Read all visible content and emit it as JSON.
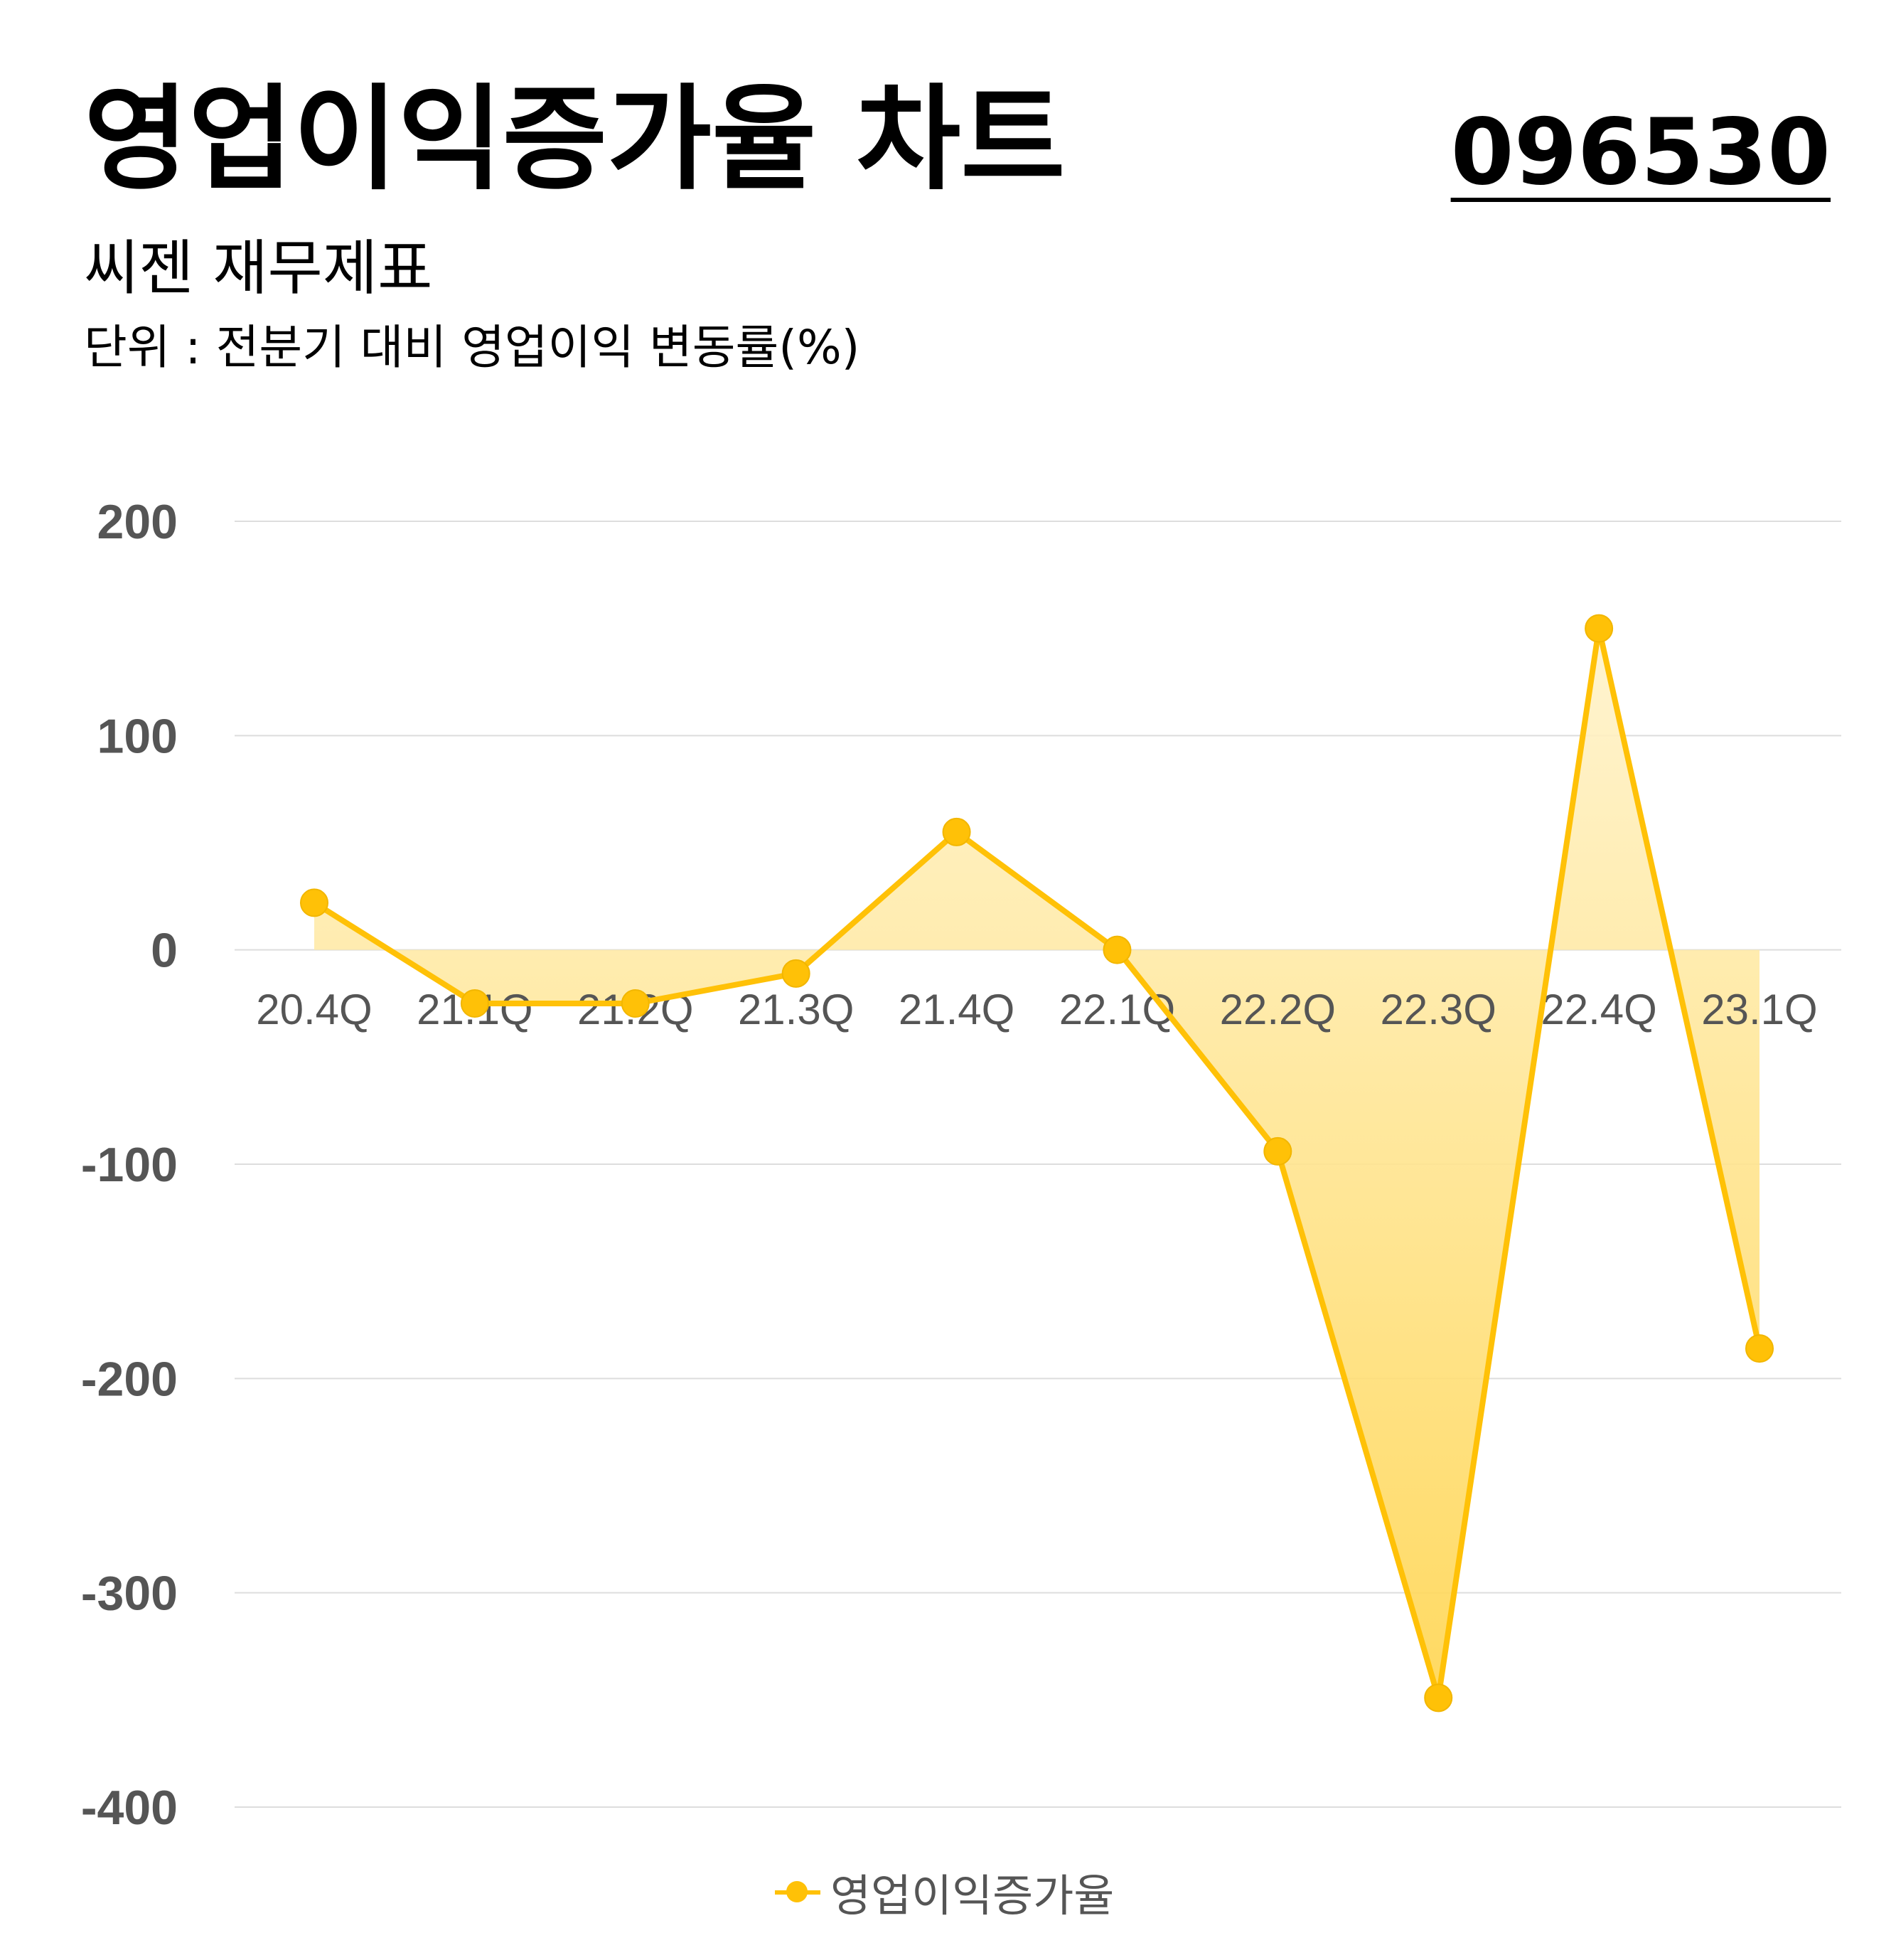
{
  "header": {
    "title": "영업이익증가율 차트",
    "code": "096530",
    "subtitle": "씨젠 재무제표",
    "unit": "단위 : 전분기 대비 영업이익 변동률(%)"
  },
  "colors": {
    "line": "#FFC107",
    "fill": "#FFE082",
    "grid": "#dddddd",
    "tick": "#555555"
  },
  "chart_data": {
    "type": "area",
    "categories": [
      "20.4Q",
      "21.1Q",
      "21.2Q",
      "21.3Q",
      "21.4Q",
      "22.1Q",
      "22.2Q",
      "22.3Q",
      "22.4Q",
      "23.1Q"
    ],
    "series": [
      {
        "name": "영업이익증가율",
        "values": [
          22,
          -25,
          -25,
          -11,
          55,
          0,
          -94,
          -349,
          150,
          -186
        ]
      }
    ],
    "ylim": [
      -400,
      200
    ],
    "yticks": [
      "200",
      "100",
      "0",
      "-100",
      "-200",
      "-300",
      "-400"
    ],
    "grid": true,
    "legend": "bottom-center"
  }
}
